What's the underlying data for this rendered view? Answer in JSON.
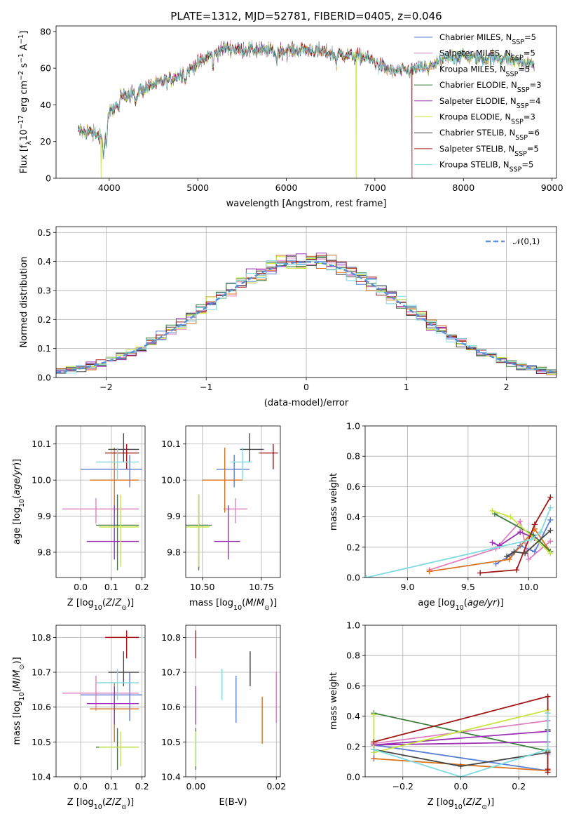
{
  "figure_title": "PLATE=1312, MJD=52781, FIBERID=0405, z=0.046",
  "colors": {
    "Chabrier MILES": "#5a7fd6",
    "Salpeter MILES": "#e07fbf",
    "Kroupa MILES": "#d9731f",
    "Chabrier ELODIE": "#3b7d3b",
    "Salpeter ELODIE": "#9a2fb3",
    "Kroupa ELODIE": "#c8e640",
    "Chabrier STELIB": "#474747",
    "Salpeter STELIB": "#a31818",
    "Kroupa STELIB": "#7fdbe0",
    "normal": "#5a8fd6"
  },
  "chart_data": [
    {
      "id": "spectrum",
      "type": "line",
      "title": "PLATE=1312, MJD=52781, FIBERID=0405, z=0.046",
      "xlabel": "wavelength [Angstrom, rest frame]",
      "ylabel": "Flux [f",
      "ylabel_parts": [
        "Flux [f",
        "λ",
        "10",
        "−17",
        " erg cm",
        "−2",
        " s",
        "−1",
        " A",
        "−1",
        "]"
      ],
      "xlim": [
        3400,
        9050
      ],
      "ylim": [
        0,
        83
      ],
      "xticks": [
        4000,
        5000,
        6000,
        7000,
        8000,
        9000
      ],
      "yticks": [
        0,
        20,
        40,
        60,
        80
      ],
      "continuum_x": [
        3650,
        3800,
        3950,
        4000,
        4150,
        4300,
        4500,
        4700,
        4900,
        5100,
        5300,
        5500,
        5700,
        5900,
        6100,
        6300,
        6500,
        6700,
        6900,
        7050,
        7200,
        7400,
        7600,
        7800,
        8000,
        8200,
        8400,
        8600,
        8800
      ],
      "continuum_y": [
        26,
        25,
        22,
        35,
        45,
        47,
        51,
        54,
        59,
        66,
        71,
        70,
        70,
        69,
        70,
        70,
        68,
        67,
        66,
        62,
        58,
        59,
        61,
        65,
        67,
        65,
        66,
        64,
        62
      ],
      "dropouts": [
        {
          "series": "Kroupa ELODIE",
          "x": 3910
        },
        {
          "series": "Kroupa ELODIE",
          "x": 6790
        },
        {
          "series": "Salpeter STELIB",
          "x": 7420
        }
      ],
      "legend_position": "upper right",
      "legend": [
        {
          "name": "Chabrier MILES",
          "nssp": "5"
        },
        {
          "name": "Salpeter MILES",
          "nssp": "5"
        },
        {
          "name": "Kroupa MILES",
          "nssp": "5"
        },
        {
          "name": "Chabrier ELODIE",
          "nssp": "3"
        },
        {
          "name": "Salpeter ELODIE",
          "nssp": "4"
        },
        {
          "name": "Kroupa ELODIE",
          "nssp": "3"
        },
        {
          "name": "Chabrier STELIB",
          "nssp": "6"
        },
        {
          "name": "Salpeter STELIB",
          "nssp": "5"
        },
        {
          "name": "Kroupa STELIB",
          "nssp": "5"
        }
      ],
      "nssp_prefix": "N",
      "nssp_sub": "SSP",
      "grid": false
    },
    {
      "id": "residuals",
      "type": "line",
      "xlabel": "(data-model)/error",
      "ylabel": "Normed distribution",
      "xlim": [
        -2.5,
        2.5
      ],
      "ylim": [
        0,
        0.52
      ],
      "xticks": [
        -2,
        -1,
        0,
        1,
        2
      ],
      "xticklabels": [
        "−2",
        "−1",
        "0",
        "1",
        "2"
      ],
      "yticks": [
        0.0,
        0.1,
        0.2,
        0.3,
        0.4,
        0.5
      ],
      "yticklabels": [
        "0.0",
        "0.1",
        "0.2",
        "0.3",
        "0.4",
        "0.5"
      ],
      "grid": true,
      "bin_width": 0.1,
      "histogram_note": "step histograms of residuals for each of the 9 fits, approximately normal with mean 0",
      "legend_label": "𝒩(0,1)",
      "legend_position": "upper right"
    },
    {
      "id": "age_vs_Z",
      "type": "scatter",
      "xlabel": "Z [log",
      "ylabel": "age  [log",
      "xlim": [
        -0.08,
        0.21
      ],
      "ylim": [
        9.73,
        10.15
      ],
      "xticks": [
        0.0,
        0.1,
        0.2
      ],
      "xticklabels": [
        "0.0",
        "0.1",
        "0.2"
      ],
      "yticks": [
        9.8,
        9.9,
        10.0,
        10.1
      ],
      "yticklabels": [
        "9.8",
        "9.9",
        "10.0",
        "10.1"
      ],
      "grid": true
    },
    {
      "id": "age_vs_mass",
      "type": "scatter",
      "xlabel": "mass [log",
      "xlim": [
        10.43,
        10.83
      ],
      "ylim": [
        9.73,
        10.15
      ],
      "xticks": [
        10.5,
        10.75
      ],
      "xticklabels": [
        "10.50",
        "10.75"
      ],
      "yticks": [
        9.8,
        9.9,
        10.0,
        10.1
      ],
      "yticklabels": [
        "9.8",
        "9.9",
        "10.0",
        "10.1"
      ],
      "grid": true
    },
    {
      "id": "weight_vs_age",
      "type": "line",
      "xlabel": "age  [log",
      "ylabel": "mass weight",
      "xlim": [
        8.65,
        10.23
      ],
      "ylim": [
        0,
        1.0
      ],
      "xticks": [
        9.0,
        9.5,
        10.0
      ],
      "xticklabels": [
        "9.0",
        "9.5",
        "10.0"
      ],
      "yticks": [
        0.0,
        0.2,
        0.4,
        0.6,
        0.8,
        1.0
      ],
      "yticklabels": [
        "0.0",
        "0.2",
        "0.4",
        "0.6",
        "0.8",
        "1.0"
      ],
      "grid": true
    },
    {
      "id": "mass_vs_Z",
      "type": "scatter",
      "xlabel": "Z [log",
      "ylabel": "mass [log",
      "xlim": [
        -0.08,
        0.21
      ],
      "ylim": [
        10.4,
        10.835
      ],
      "xticks": [
        0.0,
        0.1,
        0.2
      ],
      "xticklabels": [
        "0.0",
        "0.1",
        "0.2"
      ],
      "yticks": [
        10.4,
        10.5,
        10.6,
        10.7,
        10.8
      ],
      "yticklabels": [
        "10.4",
        "10.5",
        "10.6",
        "10.7",
        "10.8"
      ],
      "grid": true
    },
    {
      "id": "mass_vs_ebv",
      "type": "scatter",
      "xlabel": "E(B-V)",
      "xlim": [
        -0.0025,
        0.021
      ],
      "ylim": [
        10.4,
        10.835
      ],
      "xticks": [
        0.0,
        0.02
      ],
      "xticklabels": [
        "0.00",
        "0.02"
      ],
      "yticks": [
        10.4,
        10.5,
        10.6,
        10.7,
        10.8
      ],
      "yticklabels": [
        "10.4",
        "10.5",
        "10.6",
        "10.7",
        "10.8"
      ],
      "grid": true
    },
    {
      "id": "weight_vs_Z",
      "type": "line",
      "xlabel": "Z [log",
      "ylabel": "mass weight",
      "xlim": [
        -0.33,
        0.33
      ],
      "ylim": [
        0,
        1.0
      ],
      "xticks": [
        -0.2,
        0.0,
        0.2
      ],
      "xticklabels": [
        "−0.2",
        "0.0",
        "0.2"
      ],
      "yticks": [
        0.0,
        0.2,
        0.4,
        0.6,
        0.8,
        1.0
      ],
      "yticklabels": [
        "0.0",
        "0.2",
        "0.4",
        "0.6",
        "0.8",
        "1.0"
      ],
      "grid": true
    }
  ],
  "fits": [
    {
      "name": "Chabrier MILES",
      "Z": 0.16,
      "Zlo": 0.0,
      "Zhi": 0.2,
      "age": 10.03,
      "agelo": 9.98,
      "agehi": 10.07,
      "mass": 10.635,
      "masslo": 10.56,
      "masshi": 10.7,
      "ebv": 0.01,
      "ebvlo": 10.555,
      "ebvhi": 10.69,
      "sfh_age": [
        9.73,
        9.86,
        9.93,
        10.05,
        10.18
      ],
      "sfh_w": [
        0.09,
        0.15,
        0.21,
        0.17,
        0.38
      ],
      "sfh_Z": [
        -0.3,
        -0.3,
        0.3,
        0.3,
        0.3
      ],
      "sfh_wZ": [
        0.12,
        0.21,
        0.04,
        0.15,
        0.37
      ]
    },
    {
      "name": "Salpeter MILES",
      "Z": 0.05,
      "Zlo": -0.06,
      "Zhi": 0.19,
      "age": 9.92,
      "agelo": 9.88,
      "agehi": 9.95,
      "mass": 10.64,
      "masslo": 10.59,
      "masshi": 10.69,
      "ebv": 0.02,
      "ebvlo": 10.555,
      "ebvhi": 10.7,
      "sfh_age": [
        9.18,
        9.73,
        9.93,
        10.0,
        10.18
      ],
      "sfh_w": [
        0.05,
        0.19,
        0.37,
        0.12,
        0.24
      ],
      "sfh_Z": [
        -0.3,
        -0.3,
        0.3,
        0.3,
        0.3
      ],
      "sfh_wZ": [
        0.21,
        0.22,
        0.37,
        0.04,
        0.16
      ]
    },
    {
      "name": "Kroupa MILES",
      "Z": 0.11,
      "Zlo": 0.03,
      "Zhi": 0.19,
      "age": 10.0,
      "agelo": 9.91,
      "agehi": 10.09,
      "mass": 10.595,
      "masslo": 10.5,
      "masshi": 10.67,
      "ebv": 0.0165,
      "ebvlo": 10.495,
      "ebvhi": 10.63,
      "sfh_age": [
        9.18,
        9.84,
        10.05,
        10.18
      ],
      "sfh_w": [
        0.04,
        0.12,
        0.32,
        0.17
      ],
      "sfh_Z": [
        -0.3,
        0.3,
        0.3,
        0.3
      ],
      "sfh_wZ": [
        0.12,
        0.04,
        0.31,
        0.17
      ]
    },
    {
      "name": "Chabrier ELODIE",
      "Z": 0.12,
      "Zlo": 0.05,
      "Zhi": 0.19,
      "age": 9.875,
      "agelo": 9.75,
      "agehi": 9.96,
      "mass": 10.485,
      "masslo": 10.42,
      "masshi": 10.54,
      "ebv": 0.0,
      "ebvlo": 10.42,
      "ebvhi": 10.54,
      "sfh_age": [
        9.72,
        10.04,
        10.18
      ],
      "sfh_w": [
        0.42,
        0.28,
        0.17
      ],
      "sfh_Z": [
        -0.3,
        0.3,
        0.3
      ],
      "sfh_wZ": [
        0.42,
        0.17,
        0.42
      ]
    },
    {
      "name": "Salpeter ELODIE",
      "Z": 0.11,
      "Zlo": 0.02,
      "Zhi": 0.19,
      "age": 9.83,
      "agelo": 9.78,
      "agehi": 9.93,
      "mass": 10.61,
      "masslo": 10.55,
      "masshi": 10.66,
      "ebv": 0.0,
      "ebvlo": 10.55,
      "ebvhi": 10.66,
      "sfh_age": [
        9.7,
        9.76,
        9.93,
        10.05
      ],
      "sfh_w": [
        0.23,
        0.21,
        0.3,
        0.26
      ],
      "sfh_Z": [
        -0.3,
        0.3,
        0.3,
        -0.3
      ],
      "sfh_wZ": [
        0.21,
        0.23,
        0.3,
        0.21
      ]
    },
    {
      "name": "Kroupa ELODIE",
      "Z": 0.13,
      "Zlo": 0.06,
      "Zhi": 0.19,
      "age": 9.87,
      "agelo": 9.76,
      "agehi": 9.96,
      "mass": 10.485,
      "masslo": 10.43,
      "masshi": 10.53,
      "ebv": 0.0,
      "ebvlo": 10.43,
      "ebvhi": 10.53,
      "sfh_age": [
        9.7,
        9.85,
        10.18
      ],
      "sfh_w": [
        0.44,
        0.4,
        0.16
      ],
      "sfh_Z": [
        -0.3,
        -0.3,
        0.3
      ],
      "sfh_wZ": [
        0.41,
        0.16,
        0.44
      ]
    },
    {
      "name": "Chabrier STELIB",
      "Z": 0.14,
      "Zlo": 0.09,
      "Zhi": 0.19,
      "age": 10.085,
      "agelo": 10.05,
      "agehi": 10.13,
      "mass": 10.7,
      "masslo": 10.66,
      "masshi": 10.76,
      "ebv": 0.0135,
      "ebvlo": 10.66,
      "ebvhi": 10.76,
      "sfh_age": [
        9.82,
        9.88,
        9.97,
        10.18
      ],
      "sfh_w": [
        0.14,
        0.17,
        0.16,
        0.31
      ],
      "sfh_Z": [
        -0.3,
        0.0,
        0.3,
        0.3
      ],
      "sfh_wZ": [
        0.18,
        0.07,
        0.16,
        0.31
      ]
    },
    {
      "name": "Salpeter STELIB",
      "Z": 0.15,
      "Zlo": 0.08,
      "Zhi": 0.19,
      "age": 10.075,
      "agelo": 10.03,
      "agehi": 10.1,
      "mass": 10.8,
      "masslo": 10.74,
      "masshi": 10.82,
      "ebv": 0.0,
      "ebvlo": 10.74,
      "ebvhi": 10.82,
      "sfh_age": [
        9.6,
        9.9,
        10.05,
        10.18
      ],
      "sfh_w": [
        0.03,
        0.05,
        0.35,
        0.53
      ],
      "sfh_Z": [
        -0.3,
        0.3,
        0.3,
        0.3
      ],
      "sfh_wZ": [
        0.23,
        0.53,
        0.05,
        0.03
      ]
    },
    {
      "name": "Kroupa STELIB",
      "Z": 0.12,
      "Zlo": 0.05,
      "Zhi": 0.19,
      "age": 10.05,
      "agelo": 10.0,
      "agehi": 10.09,
      "mass": 10.67,
      "masslo": 10.62,
      "masshi": 10.71,
      "ebv": 0.0065,
      "ebvlo": 10.62,
      "ebvhi": 10.71,
      "sfh_age": [
        8.66,
        10.02,
        10.1,
        10.18
      ],
      "sfh_w": [
        0.0,
        0.25,
        0.3,
        0.46
      ],
      "sfh_Z": [
        -0.3,
        0.0,
        0.3,
        0.3
      ],
      "sfh_wZ": [
        0.18,
        0.0,
        0.18,
        0.42
      ]
    }
  ]
}
